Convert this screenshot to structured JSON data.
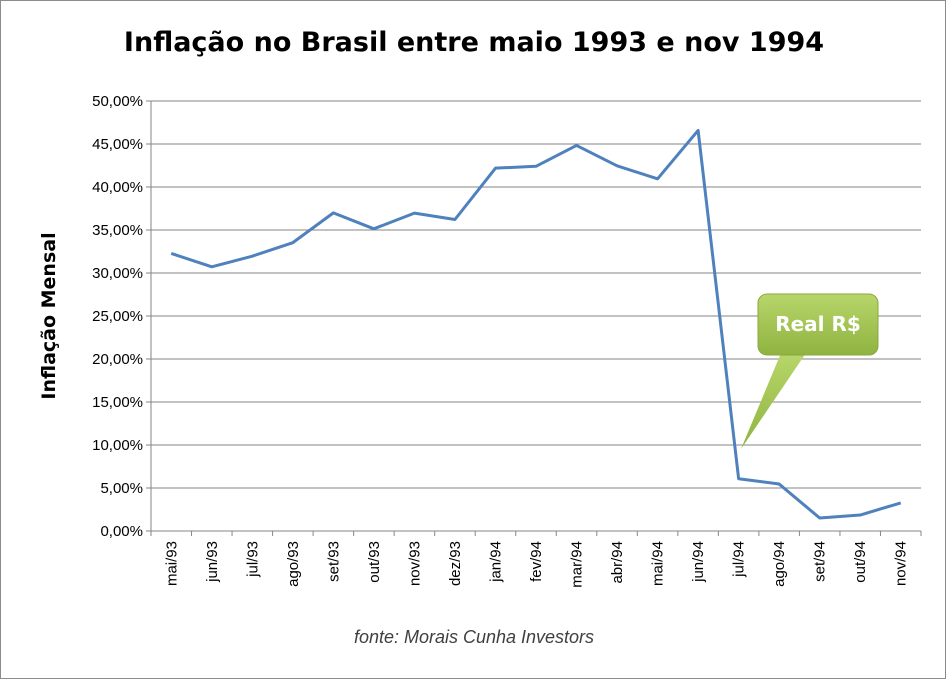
{
  "chart_data": {
    "type": "line",
    "title": "Inflação no Brasil entre maio 1993 e nov 1994",
    "ylabel": "Inflação Mensal",
    "xlabel": "",
    "source": "fonte: Morais Cunha Investors",
    "categories": [
      "mai/93",
      "jun/93",
      "jul/93",
      "ago/93",
      "set/93",
      "out/93",
      "nov/93",
      "dez/93",
      "jan/94",
      "fev/94",
      "mar/94",
      "abr/94",
      "mai/94",
      "jun/94",
      "jul/94",
      "ago/94",
      "set/94",
      "out/94",
      "nov/94"
    ],
    "series": [
      {
        "values": [
          32.27,
          30.72,
          31.96,
          33.53,
          36.99,
          35.14,
          36.96,
          36.22,
          42.19,
          42.41,
          44.83,
          42.46,
          40.95,
          46.58,
          6.08,
          5.46,
          1.51,
          1.86,
          3.27
        ],
        "color": "#4f81bd"
      }
    ],
    "ylim": [
      0,
      50
    ],
    "ytick_step": 5,
    "ytick_labels": [
      "0,00%",
      "5,00%",
      "10,00%",
      "15,00%",
      "20,00%",
      "25,00%",
      "30,00%",
      "35,00%",
      "40,00%",
      "45,00%",
      "50,00%"
    ],
    "grid": true,
    "annotation": {
      "text": "Real R$",
      "points_to": "jul/94",
      "color": "#9bbb59"
    }
  }
}
